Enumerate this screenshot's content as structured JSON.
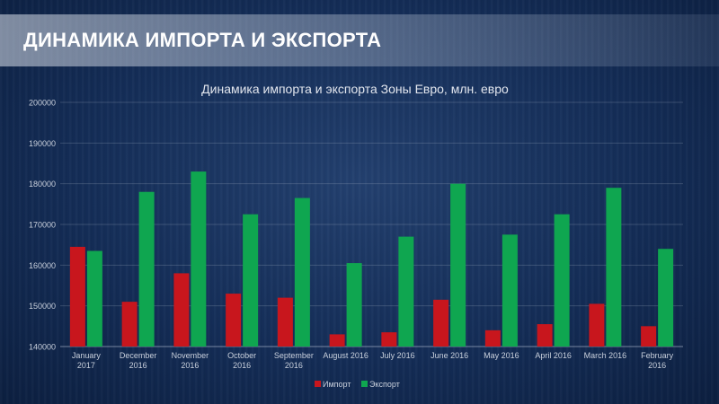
{
  "header": {
    "title": "ДИНАМИКА ИМПОРТА И ЭКСПОРТА"
  },
  "chart_data": {
    "type": "bar",
    "title": "Динамика импорта и экспорта Зоны Евро, млн. евро",
    "categories": [
      [
        "January",
        "2017"
      ],
      [
        "December",
        "2016"
      ],
      [
        "November",
        "2016"
      ],
      [
        "October",
        "2016"
      ],
      [
        "September",
        "2016"
      ],
      [
        "August 2016"
      ],
      [
        "July 2016"
      ],
      [
        "June 2016"
      ],
      [
        "May 2016"
      ],
      [
        "April 2016"
      ],
      [
        "March 2016"
      ],
      [
        "February",
        "2016"
      ]
    ],
    "series": [
      {
        "name": "Импорт",
        "color": "#c8161d",
        "values": [
          164500,
          151000,
          158000,
          153000,
          152000,
          143000,
          143500,
          151500,
          144000,
          145500,
          150500,
          145000
        ]
      },
      {
        "name": "Экспорт",
        "color": "#0fa650",
        "values": [
          163500,
          178000,
          183000,
          172500,
          176500,
          160500,
          167000,
          180000,
          167500,
          172500,
          179000,
          164000
        ]
      }
    ],
    "ylim": [
      140000,
      200000
    ],
    "yticks": [
      140000,
      150000,
      160000,
      170000,
      180000,
      190000,
      200000
    ],
    "grid": true,
    "legend": "bottom"
  }
}
